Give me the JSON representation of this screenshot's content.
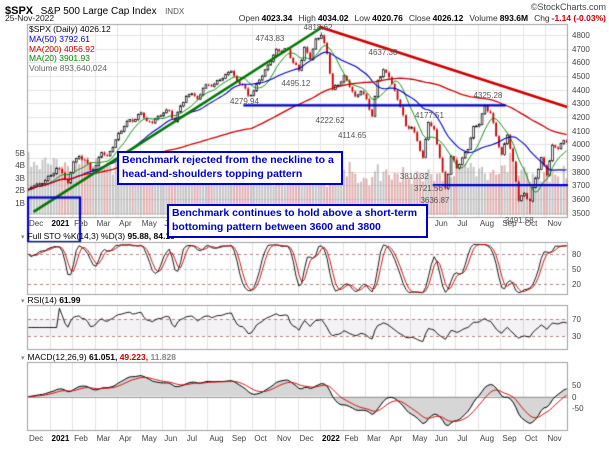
{
  "header": {
    "symbol": "$SPX",
    "name": "S&P 500 Large Cap Index",
    "exchange": "INDX",
    "copyright": "©StockCharts.com",
    "date": "25-Nov-2022",
    "quote_items": [
      {
        "label": "Open",
        "value": "4023.34",
        "negative": false
      },
      {
        "label": "High",
        "value": "4034.02",
        "negative": false
      },
      {
        "label": "Low",
        "value": "4020.76",
        "negative": false
      },
      {
        "label": "Close",
        "value": "4026.12",
        "negative": false
      },
      {
        "label": "Volume",
        "value": "893.6M",
        "negative": false
      },
      {
        "label": "Chg",
        "value": "-1.14 (-0.03%)",
        "negative": true
      }
    ]
  },
  "legend": {
    "items": [
      {
        "text": "$SPX (Daily) 4026.12",
        "color": "#000000"
      },
      {
        "text": "MA(50) 3792.61",
        "color": "#0000cc"
      },
      {
        "text": "MA(200) 4056.92",
        "color": "#cc0000"
      },
      {
        "text": "MA(20) 3901.93",
        "color": "#008800"
      },
      {
        "text": "Volume 893,640,024",
        "color": "#666666"
      }
    ]
  },
  "panels": {
    "sto": {
      "label": "Full STO %K(14,3) %D(3)",
      "values": "95.88, 84.18"
    },
    "rsi": {
      "label": "RSI(14)",
      "values": "61.99"
    },
    "macd": {
      "label": "MACD(12,26,9)",
      "v1": "61.051,",
      "v2": "49.223,",
      "v3": "11.828"
    }
  },
  "annotations": {
    "box1": "Benchmark rejected from the neckline to a head-and-shoulders topping pattern",
    "box2": "Benchmark continues to hold above a short-term bottoming pattern between 3600 and 3800"
  },
  "axes": {
    "price_ticks": [
      4800,
      4700,
      4600,
      4500,
      4400,
      4300,
      4200,
      4100,
      4000,
      3900,
      3800,
      3700,
      3600,
      3500
    ],
    "volume_ticks": [
      "5B",
      "4B",
      "3B",
      "2B",
      "1B"
    ],
    "x_labels": [
      "Dec",
      "2021",
      "Feb",
      "Mar",
      "Apr",
      "May",
      "Jun",
      "Jul",
      "Aug",
      "Sep",
      "Oct",
      "Nov",
      "Dec",
      "2022",
      "Feb",
      "Mar",
      "Apr",
      "May",
      "Jun",
      "Jul",
      "Aug",
      "Sep",
      "Oct",
      "Nov"
    ],
    "sto_ticks": [
      80,
      50,
      20
    ],
    "rsi_ticks": [
      70,
      30
    ],
    "macd_ticks": [
      50,
      0,
      -50
    ]
  },
  "colors": {
    "up": "#000000",
    "down": "#cc0000",
    "ma20": "#008800",
    "ma50": "#0000cc",
    "ma200": "#cc0000",
    "trend_up": "#007700",
    "trend_down": "#cc0000",
    "annotation": "#0000cc",
    "grid": "#e3e3e3",
    "panel_border": "#a0a0a0",
    "sto_k": "#000000",
    "sto_d": "#cc0000",
    "macd_line": "#000000",
    "macd_signal": "#cc0000",
    "macd_area": "#d6d6d6"
  },
  "chart_data": {
    "type": "candlestick",
    "title": "$SPX S&P 500 Large Cap Index (Daily)",
    "last_close": 4026.12,
    "ylim": [
      3460,
      4880
    ],
    "grid_step": 100,
    "x_labels": [
      "Dec",
      "2021",
      "Feb",
      "Mar",
      "Apr",
      "May",
      "Jun",
      "Jul",
      "Aug",
      "Sep",
      "Oct",
      "Nov",
      "Dec",
      "2022",
      "Feb",
      "Mar",
      "Apr",
      "May",
      "Jun",
      "Jul",
      "Aug",
      "Sep",
      "Oct",
      "Nov"
    ],
    "weekly_closes": [
      3670,
      3695,
      3710,
      3735,
      3770,
      3825,
      3790,
      3715,
      3870,
      3910,
      3885,
      3810,
      3845,
      3940,
      3915,
      3975,
      4080,
      4130,
      4180,
      4180,
      4230,
      4170,
      4155,
      4205,
      4230,
      4245,
      4165,
      4280,
      4350,
      4370,
      4330,
      4410,
      4435,
      4440,
      4470,
      4510,
      4535,
      4460,
      4435,
      4355,
      4390,
      4470,
      4545,
      4605,
      4695,
      4680,
      4695,
      4595,
      4540,
      4710,
      4620,
      4770,
      4796,
      4663,
      4400,
      4432,
      4500,
      4420,
      4350,
      4385,
      4330,
      4205,
      4465,
      4545,
      4490,
      4393,
      4272,
      4132,
      4124,
      4024,
      3902,
      4158,
      4109,
      3900,
      3675,
      3912,
      3825,
      3900,
      3962,
      4130,
      4145,
      4280,
      4228,
      4058,
      3924,
      4067,
      3873,
      3586,
      3640,
      3584,
      3752,
      3902,
      3771,
      3993,
      3966,
      4026
    ],
    "extremes": [
      {
        "i": 104,
        "high": 4818.62
      },
      {
        "i": 178,
        "low": 3491.58
      }
    ],
    "pivots": [
      {
        "label": "4818.62",
        "fx": 0.538,
        "price": 4818.62,
        "side": "above"
      },
      {
        "label": "4743.83",
        "fx": 0.449,
        "price": 4743.83,
        "side": "above"
      },
      {
        "label": "4637.30",
        "fx": 0.658,
        "price": 4637.3,
        "side": "above"
      },
      {
        "label": "4495.12",
        "fx": 0.497,
        "price": 4495.12,
        "side": "below"
      },
      {
        "label": "4325.28",
        "fx": 0.852,
        "price": 4325.28,
        "side": "above"
      },
      {
        "label": "4279.94",
        "fx": 0.402,
        "price": 4279.94,
        "side": "above"
      },
      {
        "label": "4177.51",
        "fx": 0.744,
        "price": 4177.51,
        "side": "above"
      },
      {
        "label": "4222.62",
        "fx": 0.56,
        "price": 4222.62,
        "side": "below"
      },
      {
        "label": "4114.65",
        "fx": 0.601,
        "price": 4114.65,
        "side": "below"
      },
      {
        "label": "3810.32",
        "fx": 0.716,
        "price": 3810.32,
        "side": "below"
      },
      {
        "label": "3721.56",
        "fx": 0.742,
        "price": 3721.56,
        "side": "below"
      },
      {
        "label": "3636.87",
        "fx": 0.754,
        "price": 3636.87,
        "side": "below"
      },
      {
        "label": "3491.58",
        "fx": 0.91,
        "price": 3491.58,
        "side": "below"
      }
    ],
    "trend_up": {
      "fx1": 0.012,
      "p1": 3505,
      "fx2": 0.547,
      "p2": 4860
    },
    "trend_down": {
      "fx1": 0.54,
      "p1": 4860,
      "fx2": 1.0,
      "p2": 4270
    },
    "neckline": {
      "price": 4285,
      "fx1": 0.4,
      "fx2": 0.885
    },
    "bottom_line": {
      "price": 3700,
      "fx1": 0.75,
      "fx2": 1.0
    },
    "bottom_left_box": {
      "fx1": 0.002,
      "fx2": 0.098,
      "p_top": 3610,
      "y_bottom": 242
    },
    "key_levels": {
      "neckline": 4280,
      "bottom_range": [
        3600,
        3800
      ]
    },
    "indicators": {
      "full_sto": {
        "k": 95.88,
        "d": 84.18
      },
      "rsi": 61.99,
      "macd": {
        "macd": 61.051,
        "signal": 49.223,
        "hist": 11.828
      }
    }
  }
}
